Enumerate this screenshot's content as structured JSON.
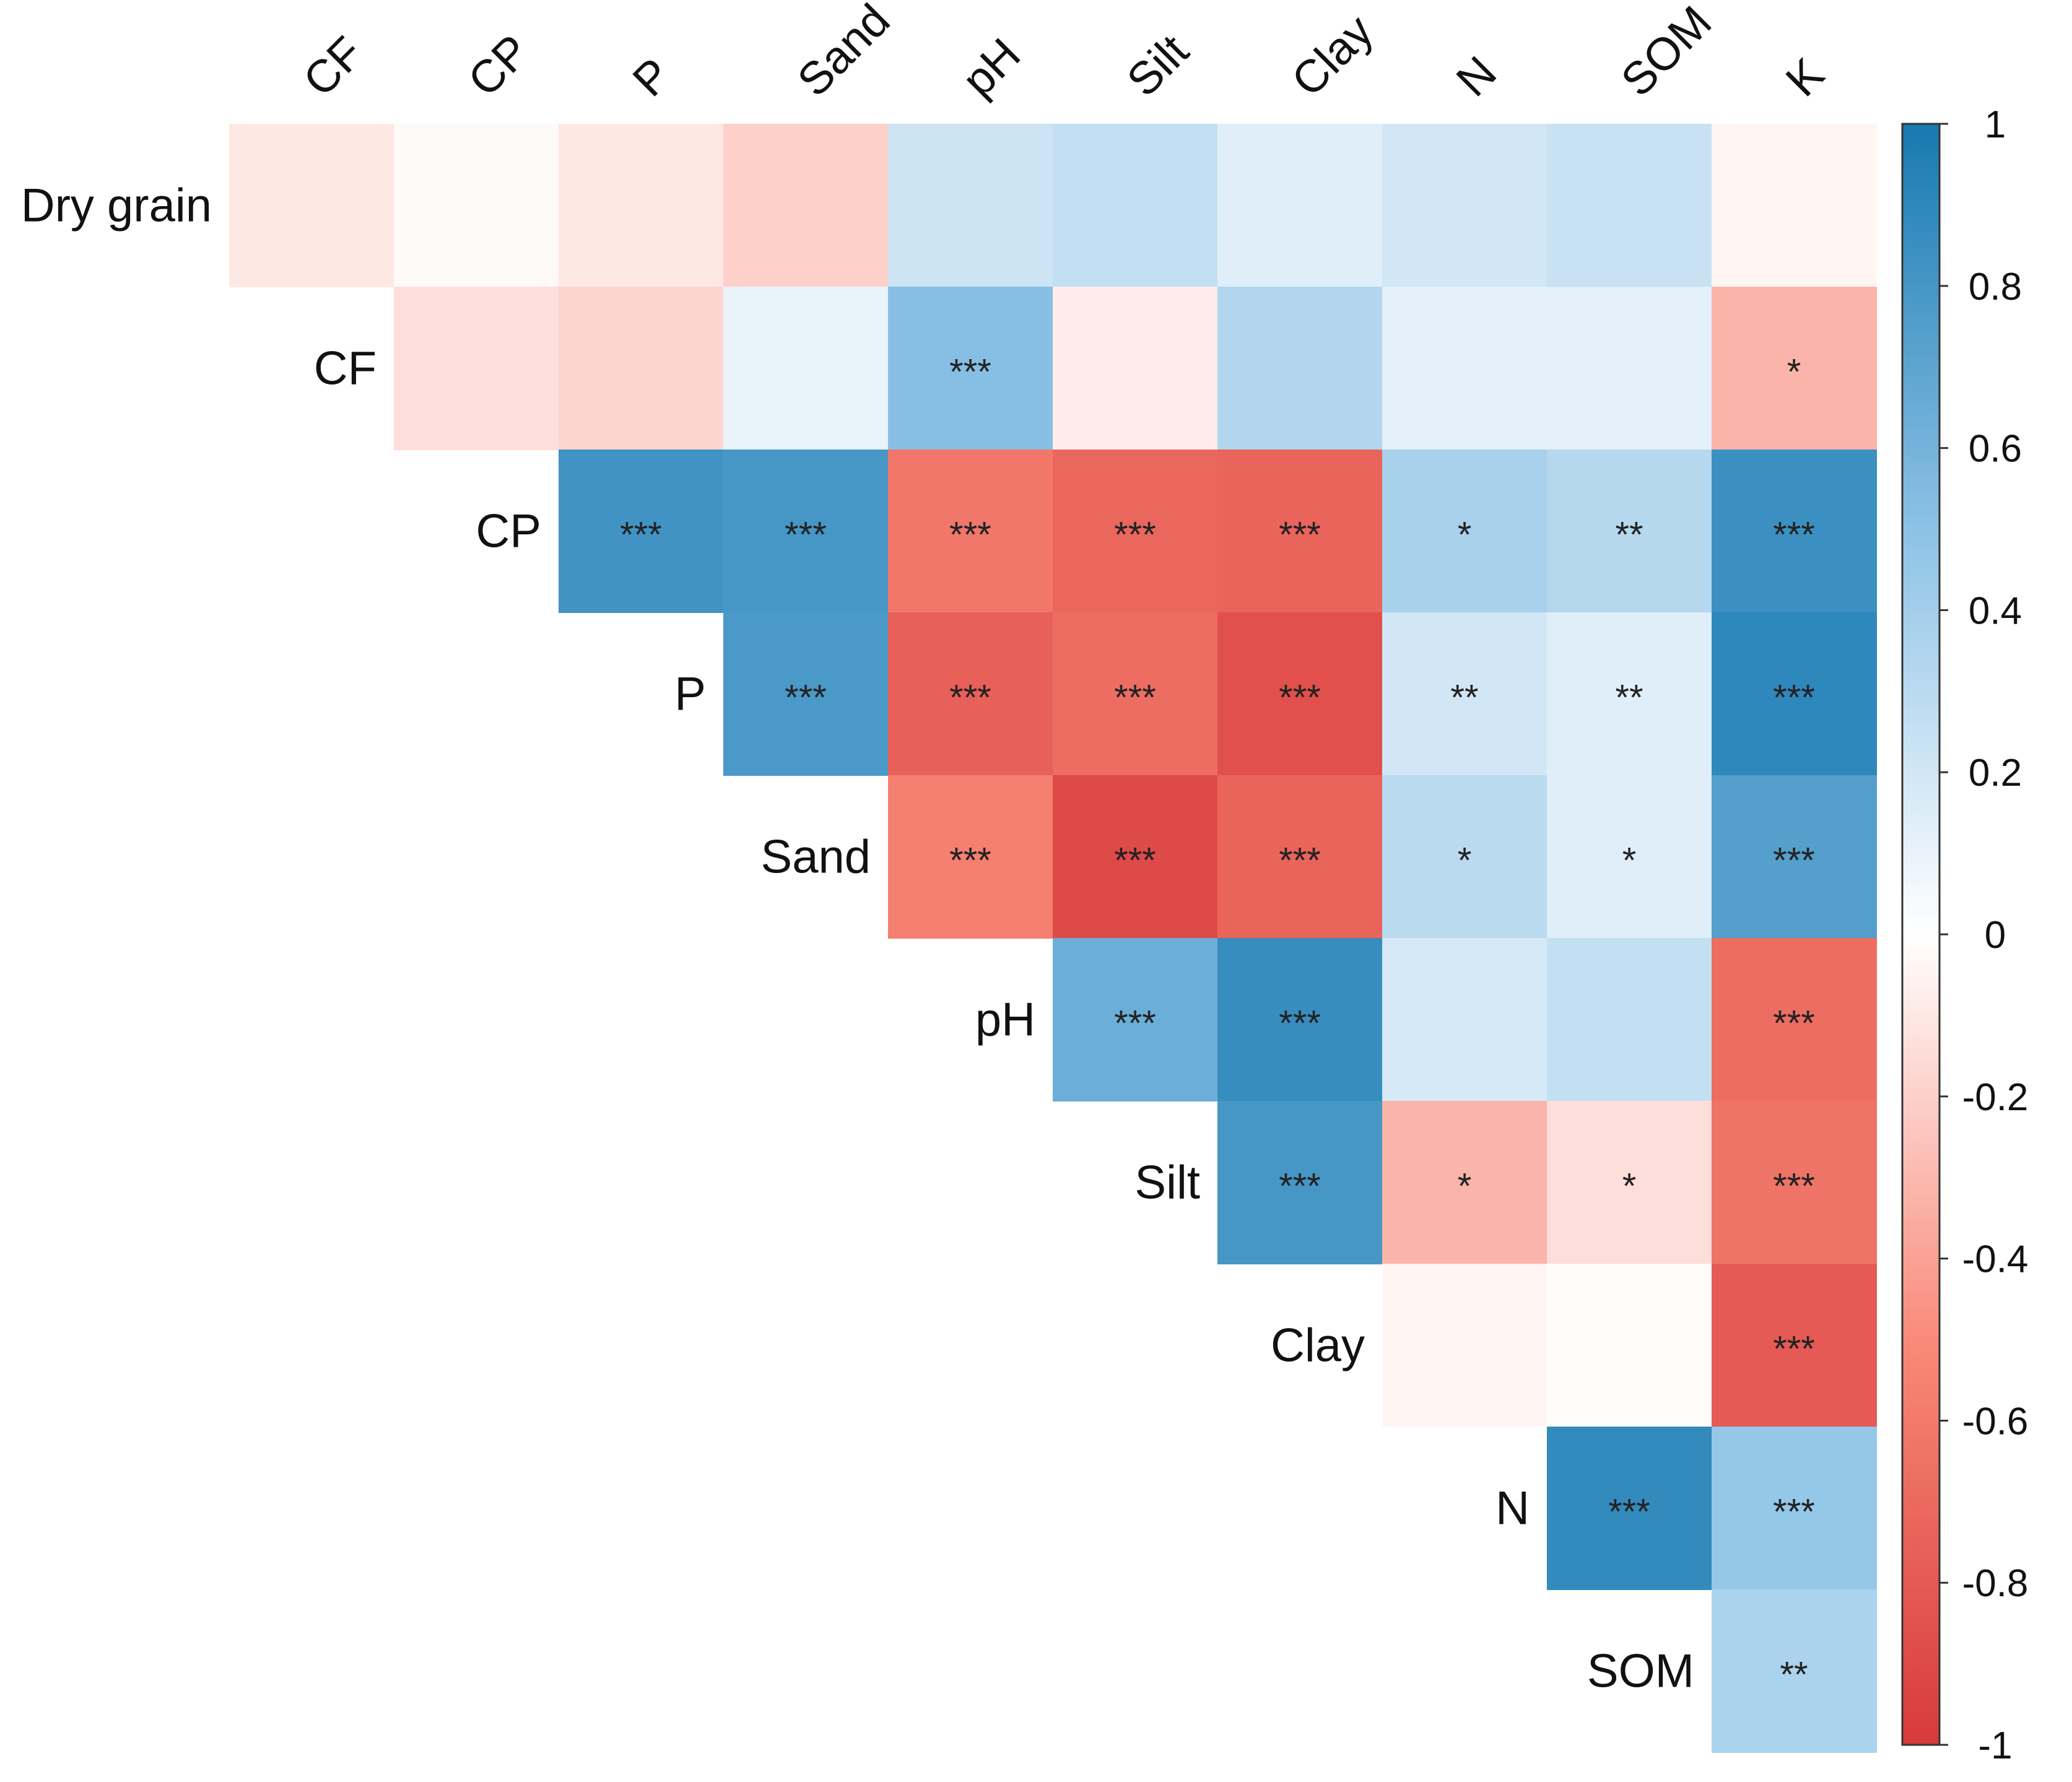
{
  "chart_data": {
    "type": "heatmap",
    "title": "",
    "columns": [
      "CF",
      "CP",
      "P",
      "Sand",
      "pH",
      "Silt",
      "Clay",
      "N",
      "SOM",
      "K"
    ],
    "rows": [
      "Dry grain",
      "CF",
      "CP",
      "P",
      "Sand",
      "pH",
      "Silt",
      "Clay",
      "N",
      "SOM"
    ],
    "layout": "upper-triangle",
    "cells": [
      [
        -0.1,
        -0.02,
        -0.1,
        -0.2,
        0.22,
        0.26,
        0.14,
        0.2,
        0.24,
        -0.04
      ],
      [
        null,
        -0.14,
        -0.18,
        0.1,
        0.52,
        -0.08,
        0.34,
        0.12,
        0.12,
        -0.32
      ],
      [
        null,
        null,
        0.82,
        0.8,
        -0.62,
        -0.72,
        -0.74,
        0.38,
        0.32,
        0.84
      ],
      [
        null,
        null,
        null,
        0.78,
        -0.76,
        -0.68,
        -0.86,
        0.2,
        0.14,
        0.9
      ],
      [
        null,
        null,
        null,
        null,
        -0.56,
        -0.9,
        -0.74,
        0.3,
        0.14,
        0.74
      ],
      [
        null,
        null,
        null,
        null,
        null,
        0.64,
        0.86,
        0.18,
        0.26,
        -0.68
      ],
      [
        null,
        null,
        null,
        null,
        null,
        null,
        0.8,
        -0.32,
        -0.14,
        -0.64
      ],
      [
        null,
        null,
        null,
        null,
        null,
        null,
        null,
        -0.04,
        -0.01,
        -0.8
      ],
      [
        null,
        null,
        null,
        null,
        null,
        null,
        null,
        null,
        0.88,
        0.46
      ],
      [
        null,
        null,
        null,
        null,
        null,
        null,
        null,
        null,
        null,
        0.36
      ]
    ],
    "significance": [
      [
        "",
        "",
        "",
        "",
        "",
        "",
        "",
        "",
        "",
        ""
      ],
      [
        null,
        "",
        "",
        "",
        "***",
        "",
        "",
        "",
        "",
        "*"
      ],
      [
        null,
        null,
        "***",
        "***",
        "***",
        "***",
        "***",
        "*",
        "**",
        "***"
      ],
      [
        null,
        null,
        null,
        "***",
        "***",
        "***",
        "***",
        "**",
        "**",
        "***"
      ],
      [
        null,
        null,
        null,
        null,
        "***",
        "***",
        "***",
        "*",
        "*",
        "***"
      ],
      [
        null,
        null,
        null,
        null,
        null,
        "***",
        "***",
        "",
        "",
        "***"
      ],
      [
        null,
        null,
        null,
        null,
        null,
        null,
        "***",
        "*",
        "*",
        "***"
      ],
      [
        null,
        null,
        null,
        null,
        null,
        null,
        null,
        "",
        "",
        "***"
      ],
      [
        null,
        null,
        null,
        null,
        null,
        null,
        null,
        null,
        "***",
        "***"
      ],
      [
        null,
        null,
        null,
        null,
        null,
        null,
        null,
        null,
        null,
        "**"
      ]
    ],
    "colorbar": {
      "range": [
        -1,
        1
      ],
      "ticks": [
        "1",
        "0.8",
        "0.6",
        "0.4",
        "0.2",
        "0",
        "-0.2",
        "-0.4",
        "-0.6",
        "-0.8",
        "-1"
      ],
      "colors": {
        "negative": "#d73a3a",
        "mid_negative": "#f98a7a",
        "zero": "#ffffff",
        "mid_positive": "#8cc2e6",
        "positive": "#1779b0"
      }
    },
    "grid": false,
    "legend_placement": "right"
  }
}
